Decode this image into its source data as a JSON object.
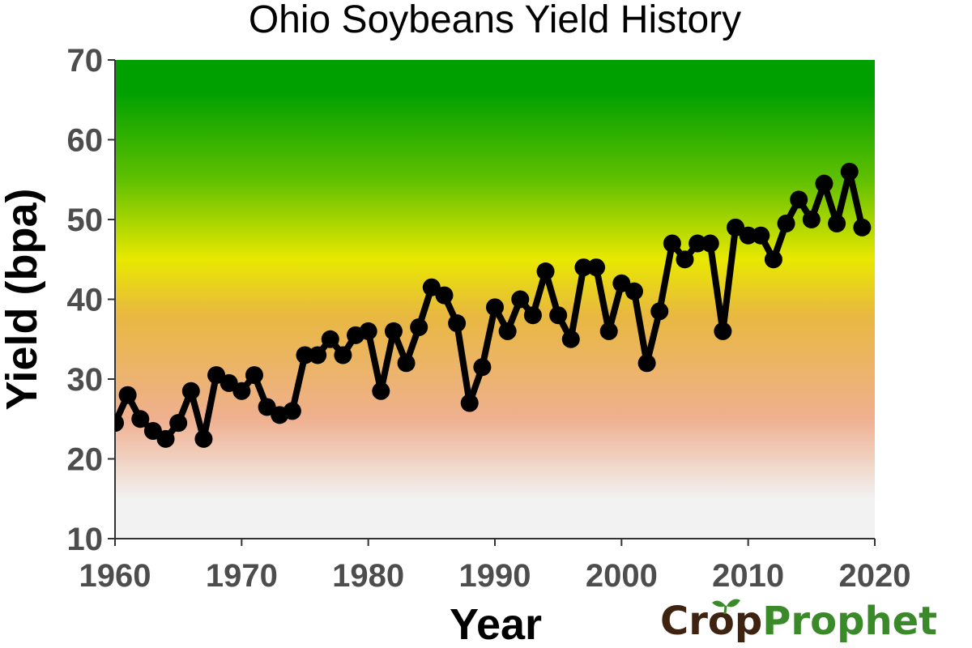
{
  "chart_data": {
    "type": "line",
    "title": "Ohio Soybeans Yield History",
    "xlabel": "Year",
    "ylabel": "Yield (bpa)",
    "xlim": [
      1960,
      2020
    ],
    "ylim": [
      10,
      70
    ],
    "xticks": [
      1960,
      1970,
      1980,
      1990,
      2000,
      2010,
      2020
    ],
    "yticks": [
      10,
      20,
      30,
      40,
      50,
      60,
      70
    ],
    "grid": false,
    "background_gradient": [
      {
        "value": 10,
        "color": "#f2f2f2"
      },
      {
        "value": 15,
        "color": "#f2f2f2"
      },
      {
        "value": 25,
        "color": "#efb090"
      },
      {
        "value": 38,
        "color": "#e8b840"
      },
      {
        "value": 45,
        "color": "#e8e800"
      },
      {
        "value": 55,
        "color": "#60c000"
      },
      {
        "value": 66,
        "color": "#00a000"
      },
      {
        "value": 70,
        "color": "#00a000"
      }
    ],
    "series": [
      {
        "name": "Yield",
        "color": "#000000",
        "x": [
          1960,
          1961,
          1962,
          1963,
          1964,
          1965,
          1966,
          1967,
          1968,
          1969,
          1970,
          1971,
          1972,
          1973,
          1974,
          1975,
          1976,
          1977,
          1978,
          1979,
          1980,
          1981,
          1982,
          1983,
          1984,
          1985,
          1986,
          1987,
          1988,
          1989,
          1990,
          1991,
          1992,
          1993,
          1994,
          1995,
          1996,
          1997,
          1998,
          1999,
          2000,
          2001,
          2002,
          2003,
          2004,
          2005,
          2006,
          2007,
          2008,
          2009,
          2010,
          2011,
          2012,
          2013,
          2014,
          2015,
          2016,
          2017,
          2018,
          2019
        ],
        "values": [
          24.5,
          28,
          25,
          23.5,
          22.5,
          24.5,
          28.5,
          22.5,
          30.5,
          29.5,
          28.5,
          30.5,
          26.5,
          25.5,
          26,
          33,
          33,
          35,
          33,
          35.5,
          36,
          28.5,
          36,
          32,
          36.5,
          41.5,
          40.5,
          37,
          27,
          31.5,
          39,
          36,
          40,
          38,
          43.5,
          38,
          35,
          44,
          44,
          36,
          42,
          41,
          32,
          38.5,
          47,
          45,
          47,
          47,
          36,
          49,
          48,
          48,
          45,
          49.5,
          52.5,
          50,
          54.5,
          49.5,
          56,
          49
        ]
      }
    ]
  },
  "logo": {
    "part1": "Cr",
    "part2": "p",
    "part3": "Prophet",
    "dark_color": "#3d2310",
    "green_color": "#3a8a2a"
  }
}
